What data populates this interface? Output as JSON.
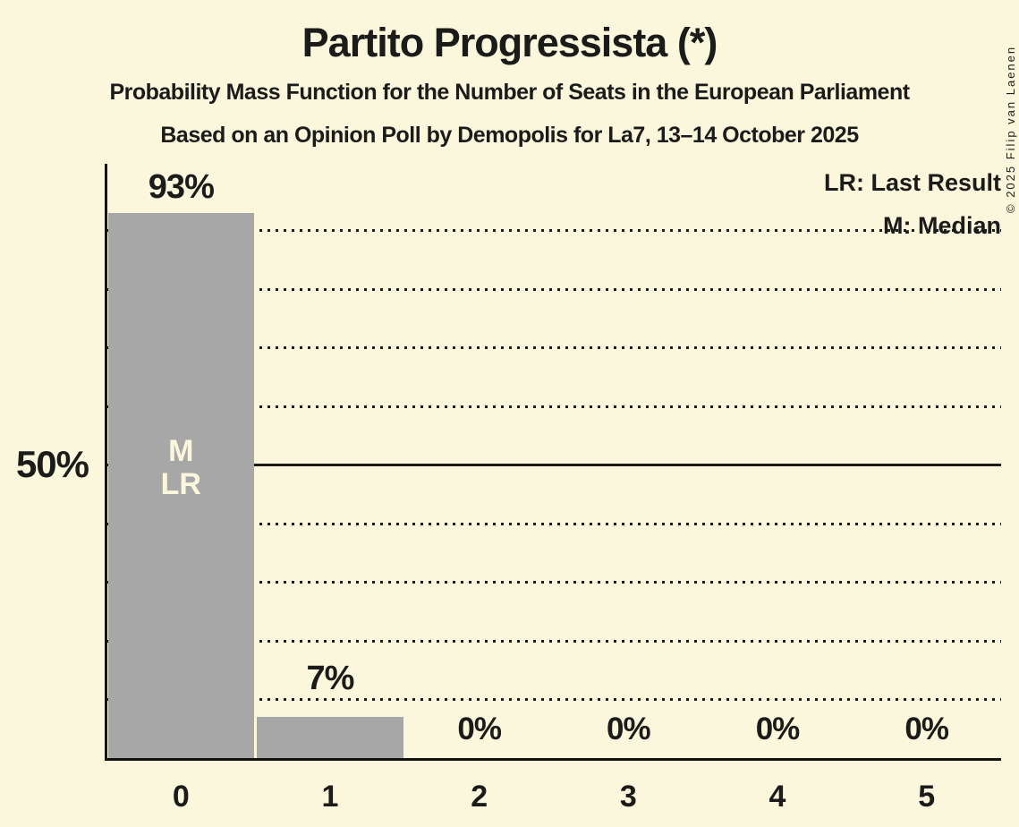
{
  "chart_data": {
    "type": "bar",
    "title": "Partito Progressista (*)",
    "subtitle": "Probability Mass Function for the Number of Seats in the European Parliament",
    "source_line": "Based on an Opinion Poll by Demopolis for La7, 13–14 October 2025",
    "copyright": "© 2025 Filip van Laenen",
    "categories": [
      "0",
      "1",
      "2",
      "3",
      "4",
      "5"
    ],
    "values": [
      93,
      7,
      0,
      0,
      0,
      0
    ],
    "value_labels": [
      "93%",
      "7%",
      "0%",
      "0%",
      "0%",
      "0%"
    ],
    "xlabel": "",
    "ylabel": "",
    "ylim": [
      0,
      100
    ],
    "y_tick_label": "50%",
    "y_tick_value": 50,
    "grid": {
      "interval_pct": 10,
      "solid_pct": 50,
      "min_pct": 10,
      "max_pct": 90,
      "style": "dotted"
    },
    "legend": {
      "last_result": "LR: Last Result",
      "median": "M: Median",
      "position": "top-right"
    },
    "annotations": {
      "bar_index": 0,
      "median_label": "M",
      "last_result_label": "LR"
    },
    "colors": {
      "background": "#FBF7DD",
      "bar": "#A7A7A7",
      "text": "#1B1B19",
      "bar_label_text": "#FBF7DD",
      "gridline": "#1B1B19",
      "axis": "#12120F"
    }
  }
}
